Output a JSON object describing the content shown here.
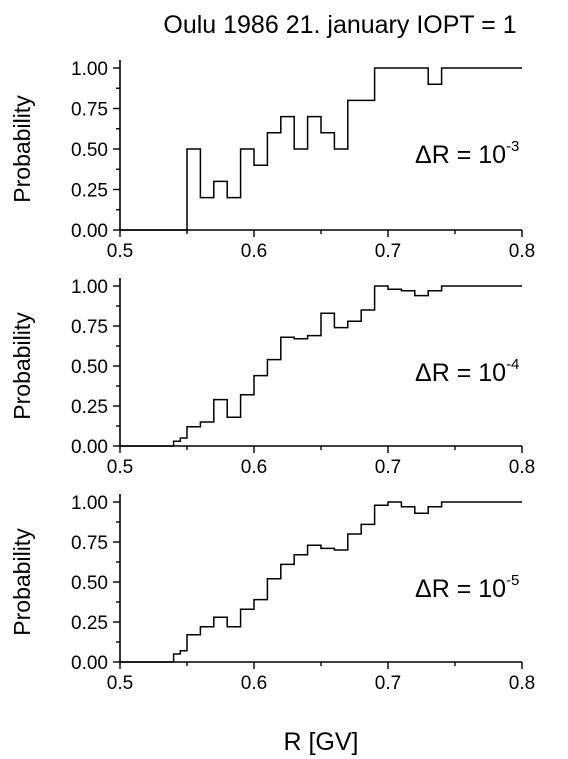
{
  "title": "Oulu 1986 21. january IOPT = 1",
  "chart_data": [
    {
      "type": "line",
      "step": true,
      "xlabel": "",
      "ylabel": "Probability",
      "xlim": [
        0.5,
        0.8
      ],
      "ylim": [
        0.0,
        1.0
      ],
      "xticks": [
        "0.5",
        "0.6",
        "0.7",
        "0.8"
      ],
      "yticks": [
        "0.00",
        "0.25",
        "0.50",
        "0.75",
        "1.00"
      ],
      "annotation": {
        "base": "ΔR = 10",
        "exp": "-3"
      },
      "x": [
        0.5,
        0.51,
        0.52,
        0.53,
        0.54,
        0.55,
        0.56,
        0.57,
        0.58,
        0.59,
        0.6,
        0.61,
        0.62,
        0.63,
        0.64,
        0.65,
        0.66,
        0.67,
        0.68,
        0.69,
        0.7,
        0.71,
        0.72,
        0.73,
        0.74,
        0.75,
        0.8
      ],
      "y": [
        0,
        0,
        0,
        0,
        0,
        0.5,
        0.2,
        0.3,
        0.2,
        0.5,
        0.4,
        0.6,
        0.7,
        0.5,
        0.7,
        0.6,
        0.5,
        0.8,
        0.8,
        1.0,
        1.0,
        1.0,
        1.0,
        0.9,
        1.0,
        1.0,
        1.0
      ]
    },
    {
      "type": "line",
      "step": true,
      "xlabel": "",
      "ylabel": "Probability",
      "xlim": [
        0.5,
        0.8
      ],
      "ylim": [
        0.0,
        1.0
      ],
      "xticks": [
        "0.5",
        "0.6",
        "0.7",
        "0.8"
      ],
      "yticks": [
        "0.00",
        "0.25",
        "0.50",
        "0.75",
        "1.00"
      ],
      "annotation": {
        "base": "ΔR = 10",
        "exp": "-4"
      },
      "x": [
        0.5,
        0.54,
        0.545,
        0.55,
        0.56,
        0.57,
        0.58,
        0.59,
        0.6,
        0.61,
        0.62,
        0.63,
        0.64,
        0.65,
        0.66,
        0.67,
        0.68,
        0.69,
        0.7,
        0.71,
        0.72,
        0.73,
        0.74,
        0.75,
        0.8
      ],
      "y": [
        0,
        0.03,
        0.05,
        0.12,
        0.15,
        0.29,
        0.18,
        0.32,
        0.44,
        0.54,
        0.68,
        0.67,
        0.69,
        0.83,
        0.74,
        0.78,
        0.85,
        1.0,
        0.98,
        0.97,
        0.94,
        0.97,
        1.0,
        1.0,
        1.0
      ]
    },
    {
      "type": "line",
      "step": true,
      "xlabel": "R [GV]",
      "ylabel": "Probability",
      "xlim": [
        0.5,
        0.8
      ],
      "ylim": [
        0.0,
        1.0
      ],
      "xticks": [
        "0.5",
        "0.6",
        "0.7",
        "0.8"
      ],
      "yticks": [
        "0.00",
        "0.25",
        "0.50",
        "0.75",
        "1.00"
      ],
      "annotation": {
        "base": "ΔR = 10",
        "exp": "-5"
      },
      "x": [
        0.5,
        0.54,
        0.545,
        0.55,
        0.56,
        0.57,
        0.58,
        0.59,
        0.6,
        0.61,
        0.62,
        0.63,
        0.64,
        0.65,
        0.66,
        0.67,
        0.68,
        0.69,
        0.7,
        0.71,
        0.72,
        0.73,
        0.74,
        0.75,
        0.8
      ],
      "y": [
        0,
        0.05,
        0.07,
        0.17,
        0.22,
        0.28,
        0.22,
        0.33,
        0.39,
        0.52,
        0.61,
        0.67,
        0.73,
        0.71,
        0.7,
        0.8,
        0.86,
        0.98,
        1.0,
        0.97,
        0.93,
        0.97,
        1.0,
        1.0,
        1.0
      ]
    }
  ]
}
